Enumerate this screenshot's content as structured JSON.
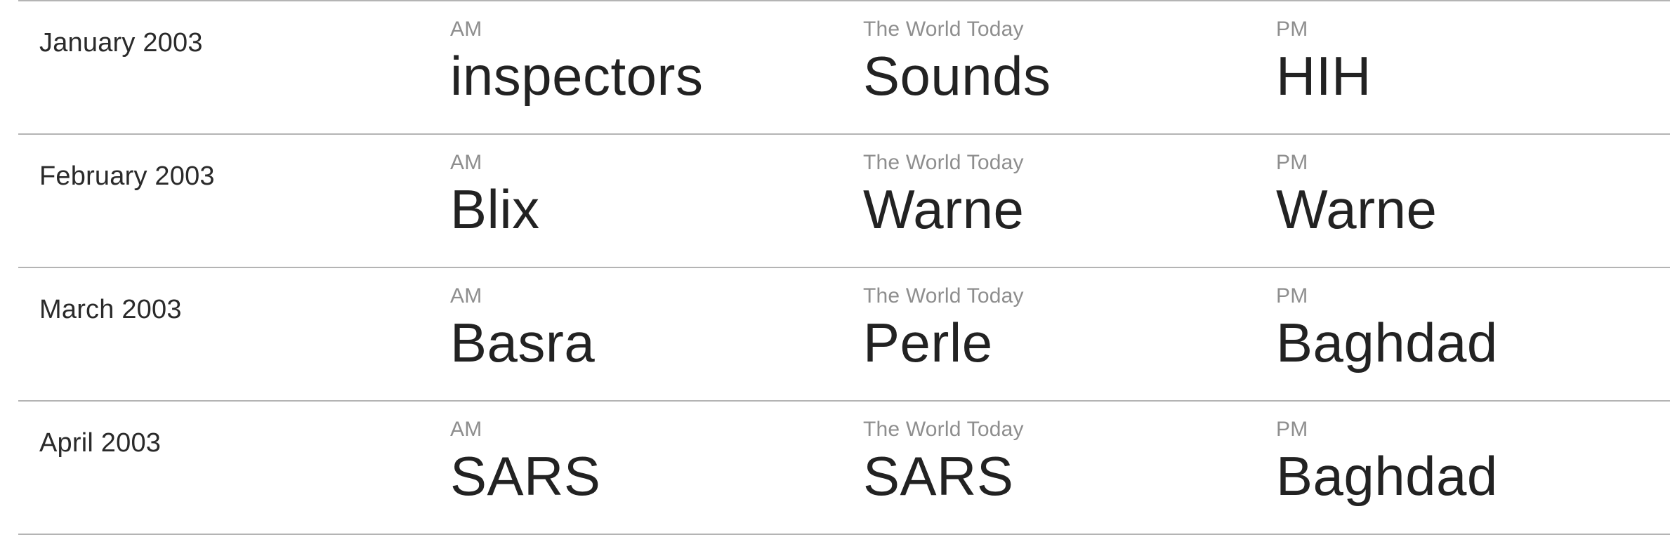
{
  "rows": [
    {
      "month": "January 2003",
      "cells": [
        {
          "program": "AM",
          "word": "inspectors"
        },
        {
          "program": "The World Today",
          "word": "Sounds"
        },
        {
          "program": "PM",
          "word": "HIH"
        }
      ]
    },
    {
      "month": "February 2003",
      "cells": [
        {
          "program": "AM",
          "word": "Blix"
        },
        {
          "program": "The World Today",
          "word": "Warne"
        },
        {
          "program": "PM",
          "word": "Warne"
        }
      ]
    },
    {
      "month": "March 2003",
      "cells": [
        {
          "program": "AM",
          "word": "Basra"
        },
        {
          "program": "The World Today",
          "word": "Perle"
        },
        {
          "program": "PM",
          "word": "Baghdad"
        }
      ]
    },
    {
      "month": "April 2003",
      "cells": [
        {
          "program": "AM",
          "word": "SARS"
        },
        {
          "program": "The World Today",
          "word": "SARS"
        },
        {
          "program": "PM",
          "word": "Baghdad"
        }
      ]
    }
  ]
}
